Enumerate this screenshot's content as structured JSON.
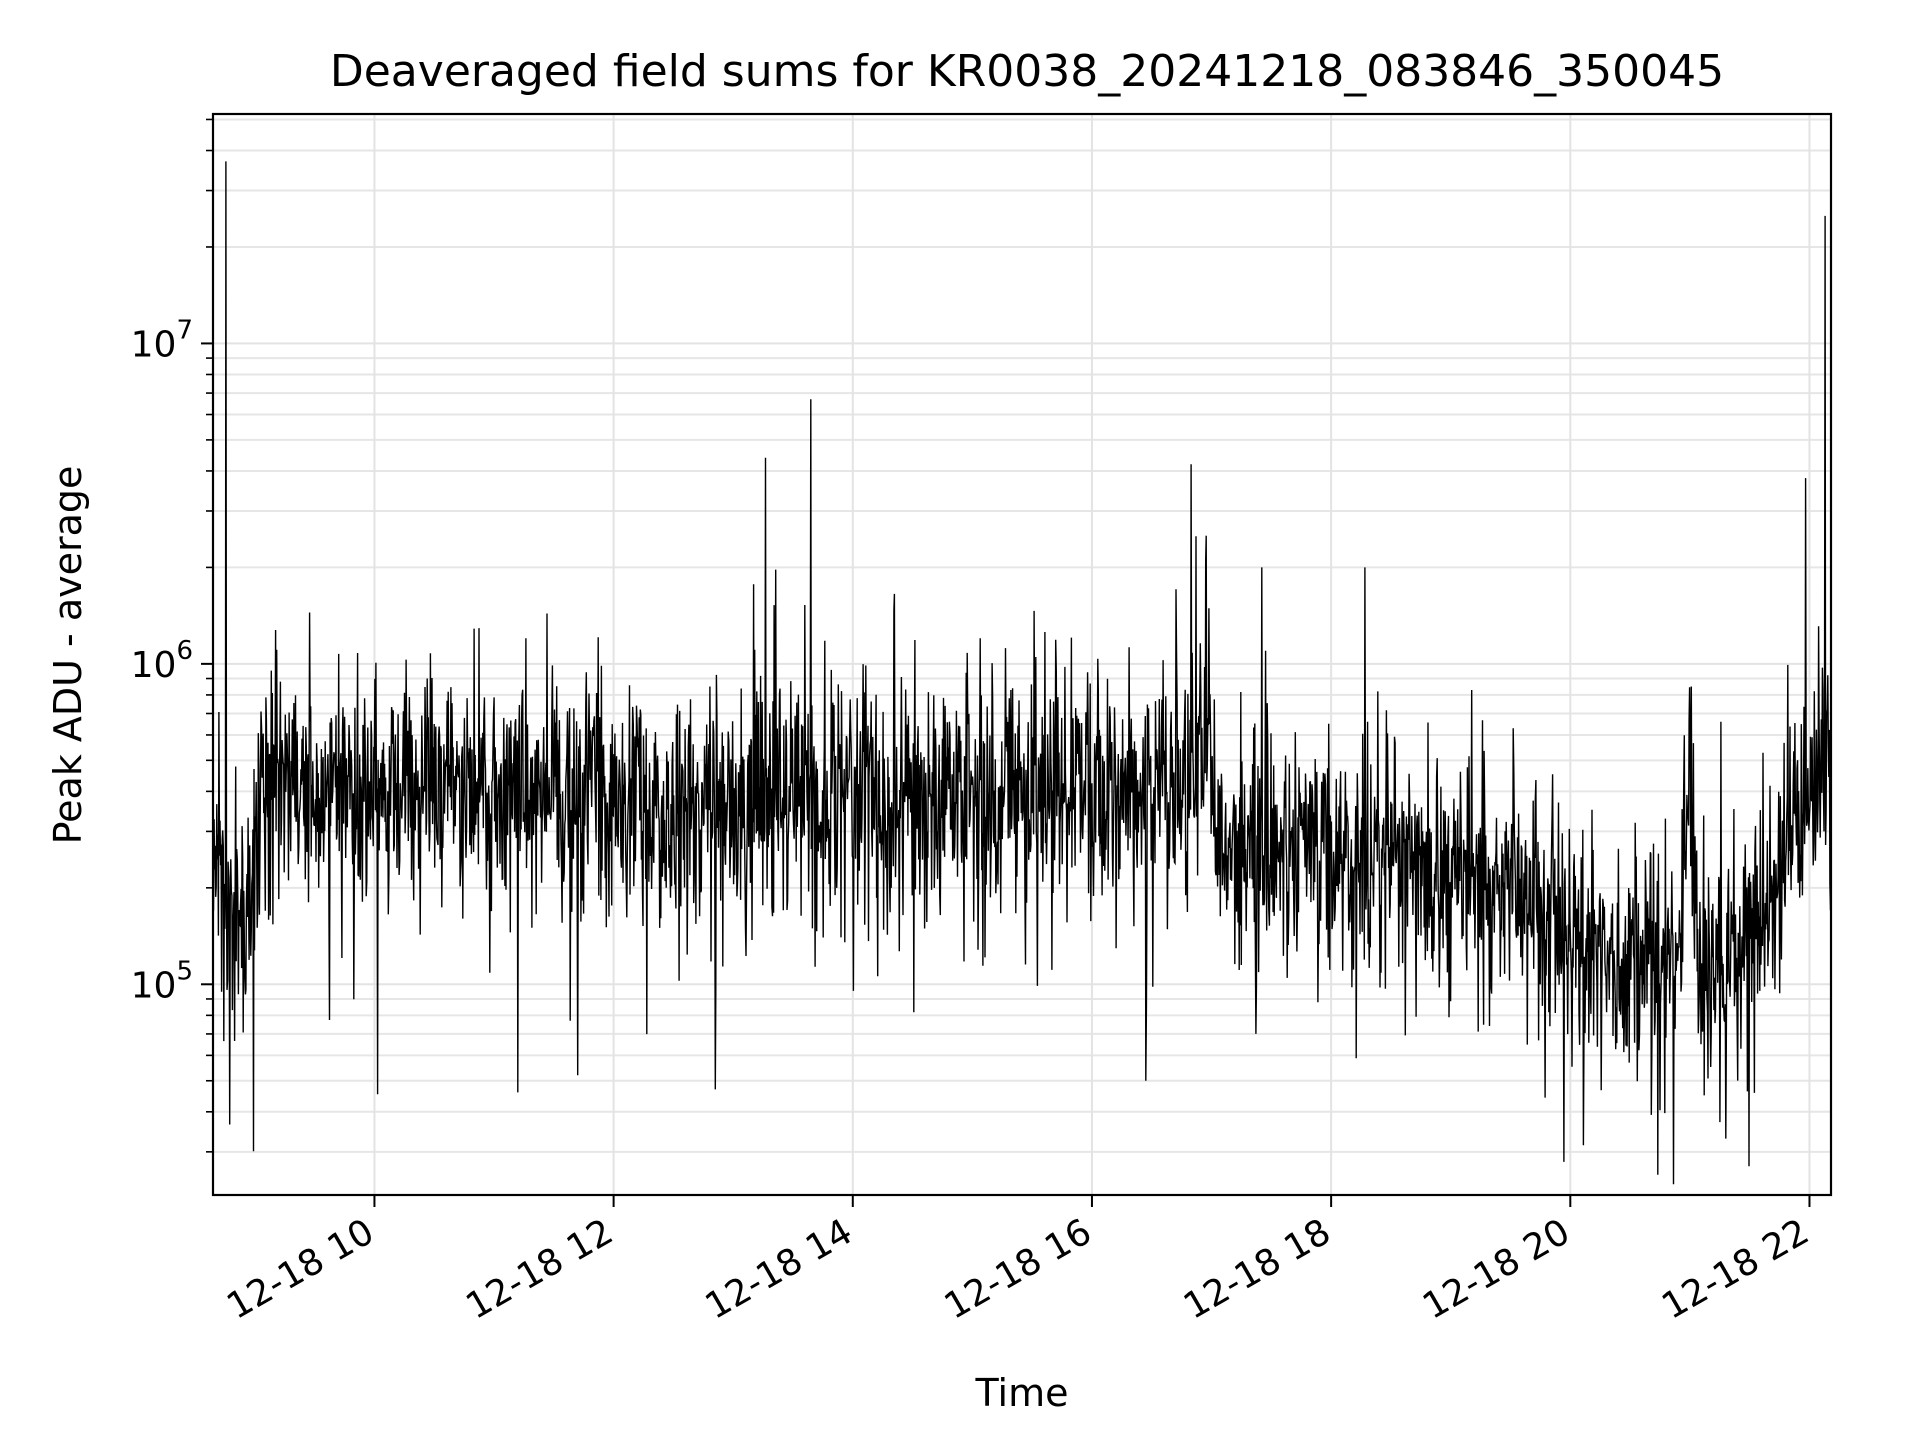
{
  "chart_data": {
    "type": "line",
    "title": "Deaveraged field sums for KR0038_20241218_083846_350045",
    "xlabel": "Time",
    "ylabel": "Peak ADU - average",
    "yscale": "log",
    "ylim": [
      22000,
      52000000
    ],
    "xlim_hours": [
      8.65,
      22.18
    ],
    "grid": true,
    "line_color": "#000000",
    "x_ticks": [
      {
        "label": "12-18 10",
        "hour": 10
      },
      {
        "label": "12-18 12",
        "hour": 12
      },
      {
        "label": "12-18 14",
        "hour": 14
      },
      {
        "label": "12-18 16",
        "hour": 16
      },
      {
        "label": "12-18 18",
        "hour": 18
      },
      {
        "label": "12-18 20",
        "hour": 20
      },
      {
        "label": "12-18 22",
        "hour": 22
      }
    ],
    "y_ticks": [
      {
        "base": "10",
        "exp": "5",
        "value": 100000
      },
      {
        "base": "10",
        "exp": "6",
        "value": 1000000
      },
      {
        "base": "10",
        "exp": "7",
        "value": 10000000
      }
    ],
    "baseline_profile": {
      "hours": [
        8.65,
        8.75,
        8.95,
        9.05,
        9.5,
        10.5,
        12.0,
        13.0,
        14.0,
        15.0,
        16.0,
        16.8,
        16.95,
        17.05,
        17.5,
        18.5,
        19.5,
        20.0,
        20.5,
        20.9,
        21.0,
        21.05,
        21.3,
        21.6,
        22.0,
        22.18
      ],
      "median": [
        200000,
        170000,
        160000,
        450000,
        420000,
        420000,
        380000,
        350000,
        380000,
        400000,
        380000,
        420000,
        700000,
        250000,
        260000,
        240000,
        210000,
        140000,
        115000,
        120000,
        400000,
        130000,
        100000,
        160000,
        420000,
        520000
      ]
    },
    "spikes": [
      {
        "hour": 8.76,
        "value": 37000000
      },
      {
        "hour": 13.27,
        "value": 4400000
      },
      {
        "hour": 13.65,
        "value": 6700000
      },
      {
        "hour": 16.83,
        "value": 4200000
      },
      {
        "hour": 16.87,
        "value": 2500000
      },
      {
        "hour": 17.42,
        "value": 2000000
      },
      {
        "hour": 18.28,
        "value": 2000000
      },
      {
        "hour": 21.97,
        "value": 3800000
      },
      {
        "hour": 22.13,
        "value": 25000000
      },
      {
        "hour": 21.01,
        "value": 850000
      },
      {
        "hour": 21.26,
        "value": 660000
      }
    ],
    "dips": [
      {
        "hour": 12.85,
        "value": 47000
      },
      {
        "hour": 11.7,
        "value": 52000
      },
      {
        "hour": 16.45,
        "value": 50000
      },
      {
        "hour": 21.3,
        "value": 33000
      },
      {
        "hour": 21.12,
        "value": 45000
      }
    ]
  }
}
